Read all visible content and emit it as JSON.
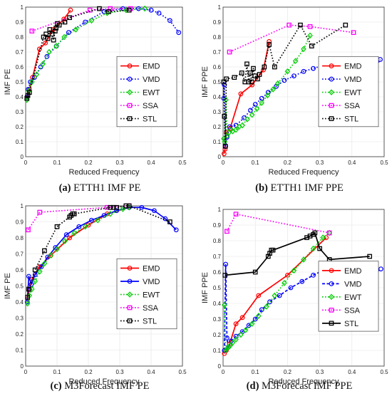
{
  "chart_data": [
    {
      "type": "line",
      "caption": {
        "label": "(a)",
        "text": " ETTH1 IMF PE"
      },
      "xlabel": "Reduced Frequency",
      "ylabel": "IMF PE",
      "xlim": [
        0,
        0.5
      ],
      "ylim": [
        0,
        1
      ],
      "xticks": [
        "0",
        "0.1",
        "0.2",
        "0.3",
        "0.4",
        "0.5"
      ],
      "yticks": [
        "0",
        "0.1",
        "0.2",
        "0.3",
        "0.4",
        "0.5",
        "0.6",
        "0.7",
        "0.8",
        "0.9",
        "1"
      ],
      "legend": "center-right",
      "grid": true,
      "series": [
        {
          "name": "EMD",
          "color": "#ff0000",
          "dash": "solid",
          "marker": "circle",
          "x": [
            0.005,
            0.012,
            0.022,
            0.044,
            0.063,
            0.088,
            0.122,
            0.143
          ],
          "y": [
            0.4,
            0.45,
            0.53,
            0.72,
            0.76,
            0.85,
            0.92,
            0.98
          ]
        },
        {
          "name": "VMD",
          "color": "#0000ff",
          "dash": "dot",
          "marker": "circle",
          "x": [
            0.004,
            0.008,
            0.015,
            0.028,
            0.048,
            0.068,
            0.098,
            0.137,
            0.19,
            0.25,
            0.31,
            0.36,
            0.4,
            0.425,
            0.46,
            0.488
          ],
          "y": [
            0.4,
            0.45,
            0.5,
            0.53,
            0.6,
            0.67,
            0.74,
            0.83,
            0.9,
            0.97,
            0.99,
            0.99,
            0.98,
            0.96,
            0.91,
            0.83
          ]
        },
        {
          "name": "EWT",
          "color": "#00cc00",
          "dash": "dot",
          "marker": "diamond",
          "x": [
            0.004,
            0.01,
            0.02,
            0.035,
            0.055,
            0.075,
            0.098,
            0.123,
            0.16,
            0.21,
            0.26,
            0.32,
            0.38
          ],
          "y": [
            0.38,
            0.44,
            0.5,
            0.55,
            0.62,
            0.7,
            0.74,
            0.8,
            0.85,
            0.91,
            0.96,
            0.98,
            0.99
          ]
        },
        {
          "name": "SSA",
          "color": "#ff00ff",
          "dash": "dot",
          "marker": "square",
          "x": [
            0.02,
            0.205,
            0.27,
            0.335
          ],
          "y": [
            0.84,
            0.98,
            0.99,
            0.99
          ]
        },
        {
          "name": "STL",
          "color": "#000000",
          "dash": "dot",
          "marker": "square",
          "x": [
            0.004,
            0.007,
            0.012,
            0.057,
            0.065,
            0.071,
            0.077,
            0.084,
            0.089,
            0.094,
            0.097,
            0.101,
            0.107,
            0.125,
            0.14,
            0.235,
            0.265,
            0.33
          ],
          "y": [
            0.39,
            0.41,
            0.43,
            0.8,
            0.82,
            0.79,
            0.85,
            0.82,
            0.78,
            0.84,
            0.86,
            0.89,
            0.88,
            0.9,
            0.93,
            0.99,
            0.97,
            0.98
          ]
        }
      ]
    },
    {
      "type": "line",
      "caption": {
        "label": "(b)",
        "text": " ETTH1 IMF PPE"
      },
      "xlabel": "Reduced Frequency",
      "ylabel": "IMF PPE",
      "xlim": [
        0,
        0.5
      ],
      "ylim": [
        0,
        1
      ],
      "xticks": [
        "0",
        "0.1",
        "0.2",
        "0.3",
        "0.4",
        "0.5"
      ],
      "yticks": [
        "0",
        "0.1",
        "0.2",
        "0.3",
        "0.4",
        "0.5",
        "0.6",
        "0.7",
        "0.8",
        "0.9",
        "1"
      ],
      "legend": "center-right",
      "grid": true,
      "series": [
        {
          "name": "EMD",
          "color": "#ff0000",
          "dash": "solid",
          "marker": "circle",
          "x": [
            0.003,
            0.006,
            0.01,
            0.022,
            0.055,
            0.09,
            0.125,
            0.143
          ],
          "y": [
            0.02,
            0.05,
            0.16,
            0.19,
            0.42,
            0.48,
            0.58,
            0.77
          ]
        },
        {
          "name": "VMD",
          "color": "#0000ff",
          "dash": "dot",
          "marker": "circle",
          "x": [
            0.002,
            0.004,
            0.008,
            0.012,
            0.02,
            0.04,
            0.065,
            0.085,
            0.1,
            0.12,
            0.14,
            0.165,
            0.19,
            0.22,
            0.25,
            0.28,
            0.31,
            0.35,
            0.39,
            0.43,
            0.46,
            0.488
          ],
          "y": [
            0.39,
            0.48,
            0.07,
            0.13,
            0.2,
            0.21,
            0.26,
            0.31,
            0.35,
            0.39,
            0.43,
            0.47,
            0.51,
            0.54,
            0.57,
            0.59,
            0.61,
            0.62,
            0.61,
            0.59,
            0.55,
            0.65
          ]
        },
        {
          "name": "EWT",
          "color": "#00cc00",
          "dash": "dot",
          "marker": "diamond",
          "x": [
            0.002,
            0.005,
            0.009,
            0.013,
            0.018,
            0.024,
            0.03,
            0.04,
            0.05,
            0.06,
            0.075,
            0.09,
            0.105,
            0.12,
            0.138,
            0.155,
            0.17,
            0.2,
            0.225,
            0.25,
            0.27
          ],
          "y": [
            0.12,
            0.1,
            0.38,
            0.14,
            0.16,
            0.18,
            0.17,
            0.18,
            0.2,
            0.21,
            0.25,
            0.28,
            0.32,
            0.36,
            0.41,
            0.45,
            0.49,
            0.57,
            0.64,
            0.72,
            0.81
          ]
        },
        {
          "name": "SSA",
          "color": "#ff00ff",
          "dash": "dot",
          "marker": "square",
          "x": [
            0.02,
            0.205,
            0.27,
            0.405
          ],
          "y": [
            0.7,
            0.88,
            0.87,
            0.83
          ]
        },
        {
          "name": "STL",
          "color": "#000000",
          "dash": "dot",
          "marker": "square",
          "x": [
            0.002,
            0.004,
            0.007,
            0.01,
            0.035,
            0.058,
            0.068,
            0.074,
            0.079,
            0.084,
            0.089,
            0.094,
            0.099,
            0.107,
            0.113,
            0.128,
            0.143,
            0.16,
            0.24,
            0.275,
            0.38
          ],
          "y": [
            0.5,
            0.27,
            0.07,
            0.52,
            0.53,
            0.56,
            0.5,
            0.62,
            0.5,
            0.56,
            0.5,
            0.59,
            0.54,
            0.52,
            0.55,
            0.6,
            0.75,
            0.6,
            0.88,
            0.74,
            0.88
          ]
        }
      ]
    },
    {
      "type": "line",
      "caption": {
        "label": "(c)",
        "text": " M3Forecast IMF PE"
      },
      "xlabel": "Reduced Frequency",
      "ylabel": "IMF PE",
      "xlim": [
        0,
        0.5
      ],
      "ylim": [
        0,
        1
      ],
      "xticks": [
        "0",
        "0.1",
        "0.2",
        "0.3",
        "0.4",
        "0.5"
      ],
      "yticks": [
        "0",
        "0.1",
        "0.2",
        "0.3",
        "0.4",
        "0.5",
        "0.6",
        "0.7",
        "0.8",
        "0.9",
        "1"
      ],
      "legend": "center-right",
      "grid": true,
      "series": [
        {
          "name": "EMD",
          "color": "#ff0000",
          "dash": "solid",
          "marker": "circle",
          "x": [
            0.006,
            0.012,
            0.02,
            0.045,
            0.08,
            0.14,
            0.2,
            0.26,
            0.33
          ],
          "y": [
            0.42,
            0.48,
            0.54,
            0.62,
            0.69,
            0.8,
            0.88,
            0.95,
            0.99
          ]
        },
        {
          "name": "VMD",
          "color": "#0000ff",
          "dash": "solid",
          "marker": "circle",
          "x": [
            0.005,
            0.01,
            0.018,
            0.03,
            0.05,
            0.07,
            0.095,
            0.13,
            0.17,
            0.21,
            0.25,
            0.29,
            0.33,
            0.37,
            0.41,
            0.445,
            0.48
          ],
          "y": [
            0.4,
            0.56,
            0.51,
            0.57,
            0.62,
            0.68,
            0.74,
            0.82,
            0.87,
            0.91,
            0.94,
            0.97,
            0.99,
            0.99,
            0.97,
            0.92,
            0.85
          ]
        },
        {
          "name": "EWT",
          "color": "#00cc00",
          "dash": "dot",
          "marker": "diamond",
          "x": [
            0.006,
            0.012,
            0.02,
            0.03,
            0.045,
            0.06,
            0.08,
            0.1,
            0.125,
            0.155,
            0.19,
            0.23,
            0.27,
            0.31,
            0.33
          ],
          "y": [
            0.39,
            0.44,
            0.48,
            0.53,
            0.59,
            0.64,
            0.69,
            0.73,
            0.78,
            0.83,
            0.87,
            0.91,
            0.95,
            0.98,
            0.99
          ]
        },
        {
          "name": "SSA",
          "color": "#ff00ff",
          "dash": "dot",
          "marker": "square",
          "x": [
            0.008,
            0.045,
            0.26,
            0.33
          ],
          "y": [
            0.85,
            0.96,
            0.99,
            1.0
          ]
        },
        {
          "name": "STL",
          "color": "#000000",
          "dash": "dot",
          "marker": "square",
          "x": [
            0.006,
            0.01,
            0.03,
            0.06,
            0.1,
            0.14,
            0.145,
            0.15,
            0.155,
            0.27,
            0.28,
            0.29,
            0.32,
            0.33,
            0.46
          ],
          "y": [
            0.43,
            0.48,
            0.6,
            0.72,
            0.87,
            0.93,
            0.94,
            0.95,
            0.95,
            0.99,
            0.99,
            0.99,
            1.0,
            1.0,
            0.9
          ]
        }
      ]
    },
    {
      "type": "line",
      "caption": {
        "label": "(d)",
        "text": " M3Forecast IMF PPE"
      },
      "xlabel": "Reduced Frequency",
      "ylabel": "IMF PPE",
      "xlim": [
        0,
        0.5
      ],
      "ylim": [
        0,
        1
      ],
      "xticks": [
        "0",
        "0.1",
        "0.2",
        "0.3",
        "0.4",
        "0.5"
      ],
      "yticks": [
        "0",
        "0.1",
        "0.2",
        "0.3",
        "0.4",
        "0.5",
        "0.6",
        "0.7",
        "0.8",
        "0.9",
        "1"
      ],
      "legend": "center-right",
      "grid": true,
      "series": [
        {
          "name": "EMD",
          "color": "#ff0000",
          "dash": "solid",
          "marker": "circle",
          "x": [
            0.004,
            0.01,
            0.02,
            0.04,
            0.06,
            0.11,
            0.2,
            0.32
          ],
          "y": [
            0.08,
            0.1,
            0.14,
            0.27,
            0.31,
            0.45,
            0.58,
            0.82
          ]
        },
        {
          "name": "VMD",
          "color": "#0000ff",
          "dash": "dashed",
          "marker": "circle",
          "x": [
            0.004,
            0.008,
            0.012,
            0.016,
            0.025,
            0.04,
            0.06,
            0.08,
            0.1,
            0.12,
            0.145,
            0.175,
            0.21,
            0.245,
            0.28,
            0.31,
            0.34,
            0.37,
            0.4,
            0.43,
            0.45,
            0.49
          ],
          "y": [
            0.1,
            0.65,
            0.18,
            0.12,
            0.16,
            0.19,
            0.22,
            0.26,
            0.3,
            0.36,
            0.41,
            0.45,
            0.5,
            0.54,
            0.58,
            0.61,
            0.62,
            0.61,
            0.6,
            0.59,
            0.56,
            0.62
          ]
        },
        {
          "name": "EWT",
          "color": "#00cc00",
          "dash": "dot",
          "marker": "diamond",
          "x": [
            0.004,
            0.008,
            0.012,
            0.016,
            0.022,
            0.03,
            0.04,
            0.055,
            0.07,
            0.09,
            0.11,
            0.135,
            0.16,
            0.19,
            0.22,
            0.25,
            0.28,
            0.31,
            0.33
          ],
          "y": [
            0.39,
            0.1,
            0.11,
            0.12,
            0.13,
            0.15,
            0.17,
            0.2,
            0.23,
            0.27,
            0.32,
            0.38,
            0.45,
            0.53,
            0.61,
            0.68,
            0.75,
            0.82,
            0.85
          ]
        },
        {
          "name": "SSA",
          "color": "#ff00ff",
          "dash": "dot",
          "marker": "square",
          "x": [
            0.012,
            0.04,
            0.33
          ],
          "y": [
            0.86,
            0.97,
            0.85
          ]
        },
        {
          "name": "STL",
          "color": "#000000",
          "dash": "solid",
          "marker": "square",
          "x": [
            0.006,
            0.1,
            0.14,
            0.145,
            0.15,
            0.155,
            0.26,
            0.27,
            0.28,
            0.285,
            0.3,
            0.33,
            0.455
          ],
          "y": [
            0.58,
            0.6,
            0.7,
            0.72,
            0.74,
            0.74,
            0.82,
            0.83,
            0.84,
            0.85,
            0.75,
            0.68,
            0.7
          ]
        }
      ]
    }
  ]
}
